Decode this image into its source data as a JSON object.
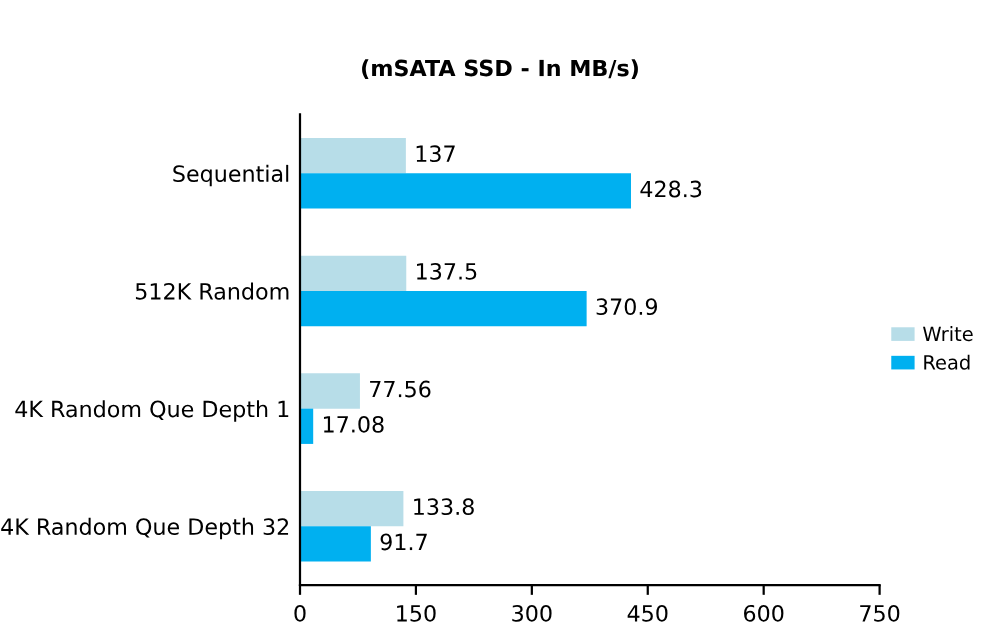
{
  "chart_data": {
    "type": "bar",
    "orientation": "horizontal",
    "subtitle": "(mSATA SSD - In MB/s)",
    "categories": [
      "Sequential",
      "512K Random",
      "4K Random Que Depth 1",
      "4K Random Que Depth 32"
    ],
    "series": [
      {
        "name": "Write",
        "color": "#b7dde8",
        "values": [
          137,
          137.5,
          77.56,
          133.8
        ]
      },
      {
        "name": "Read",
        "color": "#00b0f0",
        "values": [
          428.3,
          370.9,
          17.08,
          91.7
        ]
      }
    ],
    "xlim": [
      0,
      750
    ],
    "xticks": [
      0,
      150,
      300,
      450,
      600,
      750
    ],
    "grid": false,
    "legend": "right",
    "data_labels": true
  }
}
